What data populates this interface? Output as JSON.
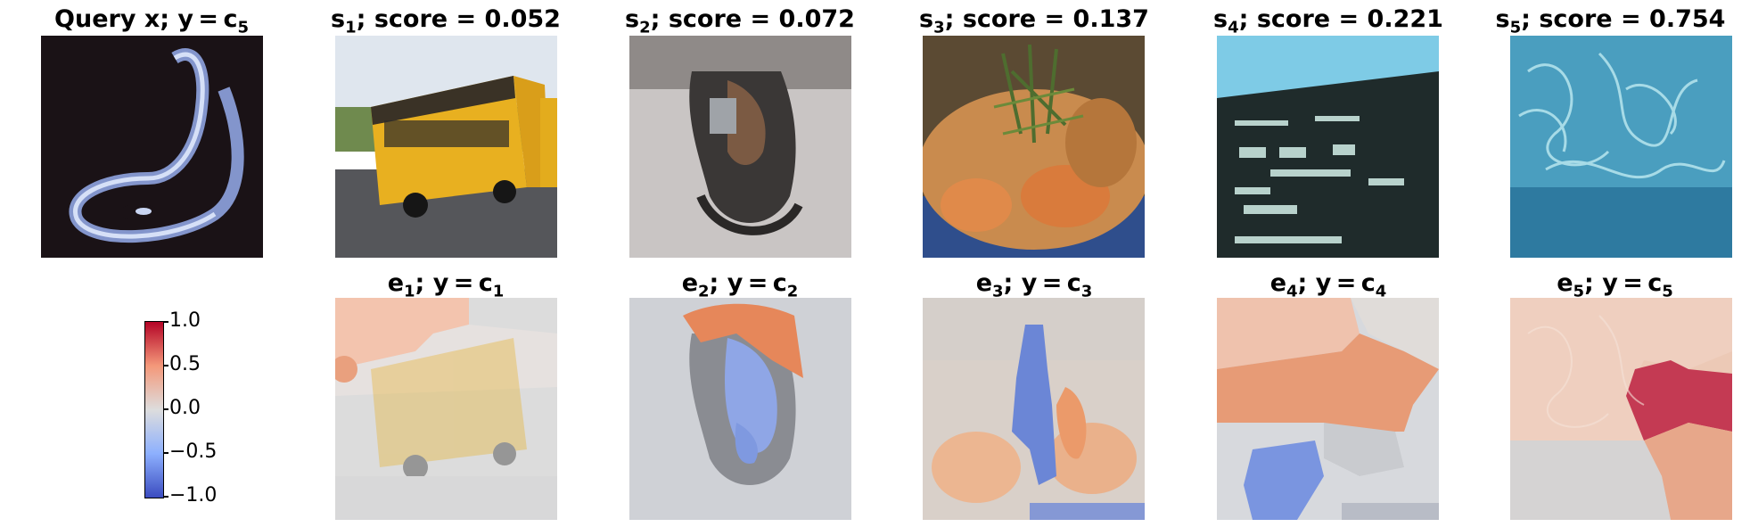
{
  "query": {
    "title_main": "Query x; y = c",
    "title_sub": "5"
  },
  "top": [
    {
      "prefix": "s",
      "sub": "1",
      "rest": "; score = 0.052",
      "scene": "school-bus"
    },
    {
      "prefix": "s",
      "sub": "2",
      "rest": "; score = 0.072",
      "scene": "harness"
    },
    {
      "prefix": "s",
      "sub": "3",
      "rest": "; score = 0.137",
      "scene": "shrimp-dish"
    },
    {
      "prefix": "s",
      "sub": "4",
      "rest": "; score = 0.221",
      "scene": "scoreboard"
    },
    {
      "prefix": "s",
      "sub": "5",
      "rest": "; score = 0.754",
      "scene": "underwater-worms"
    }
  ],
  "bottom": [
    {
      "prefix": "e",
      "sub": "1",
      "mid": "; y = c",
      "sub2": "1"
    },
    {
      "prefix": "e",
      "sub": "2",
      "mid": "; y = c",
      "sub2": "2"
    },
    {
      "prefix": "e",
      "sub": "3",
      "mid": "; y = c",
      "sub2": "3"
    },
    {
      "prefix": "e",
      "sub": "4",
      "mid": "; y = c",
      "sub2": "4"
    },
    {
      "prefix": "e",
      "sub": "5",
      "mid": "; y = c",
      "sub2": "5"
    }
  ],
  "colorbar": {
    "ticks": [
      "1.0",
      "0.5",
      "0.0",
      "−0.5",
      "−1.0"
    ],
    "cmap": "coolwarm",
    "colors": {
      "high": "#b40426",
      "mid": "#dddddd",
      "low": "#3b4cc0"
    }
  }
}
